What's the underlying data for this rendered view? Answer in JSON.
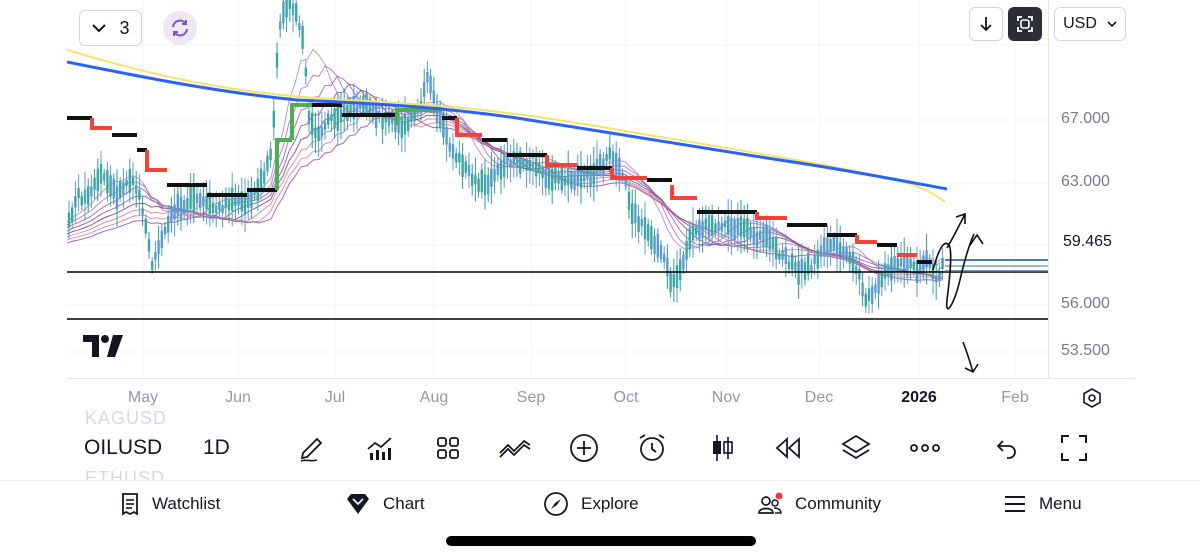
{
  "top_bar": {
    "layout_count": "3",
    "currency": "USD"
  },
  "price_scale": {
    "labels": [
      "67.000",
      "63.000",
      "56.000",
      "53.500"
    ],
    "current_price": "59.465"
  },
  "time_axis": {
    "labels": [
      "May",
      "Jun",
      "Jul",
      "Aug",
      "Sep",
      "Oct",
      "Nov",
      "Dec",
      "2026",
      "Feb"
    ]
  },
  "symbol_bar": {
    "ghost_above": "KAGUSD",
    "symbol": "OILUSD",
    "interval": "1D",
    "ghost_below": "ETHUSD"
  },
  "toolbar": {
    "icons": [
      "drawing-pen-icon",
      "indicators-icon",
      "templates-icon",
      "compare-icon",
      "add-icon",
      "alert-icon",
      "chart-type-icon",
      "replay-icon",
      "layers-icon",
      "more-icon",
      "undo-icon",
      "fullscreen-icon"
    ]
  },
  "bottom_nav": {
    "watchlist": "Watchlist",
    "chart": "Chart",
    "explore": "Explore",
    "community": "Community",
    "menu": "Menu"
  },
  "colors": {
    "ma_blue": "#2962ff",
    "ma_yellow": "#f5e663",
    "candle": "#5b9bd5",
    "ribbon_purple": "#7b3fa0",
    "step_red": "#f44336",
    "step_green": "#4caf50",
    "notification_dot": "#f23645"
  }
}
